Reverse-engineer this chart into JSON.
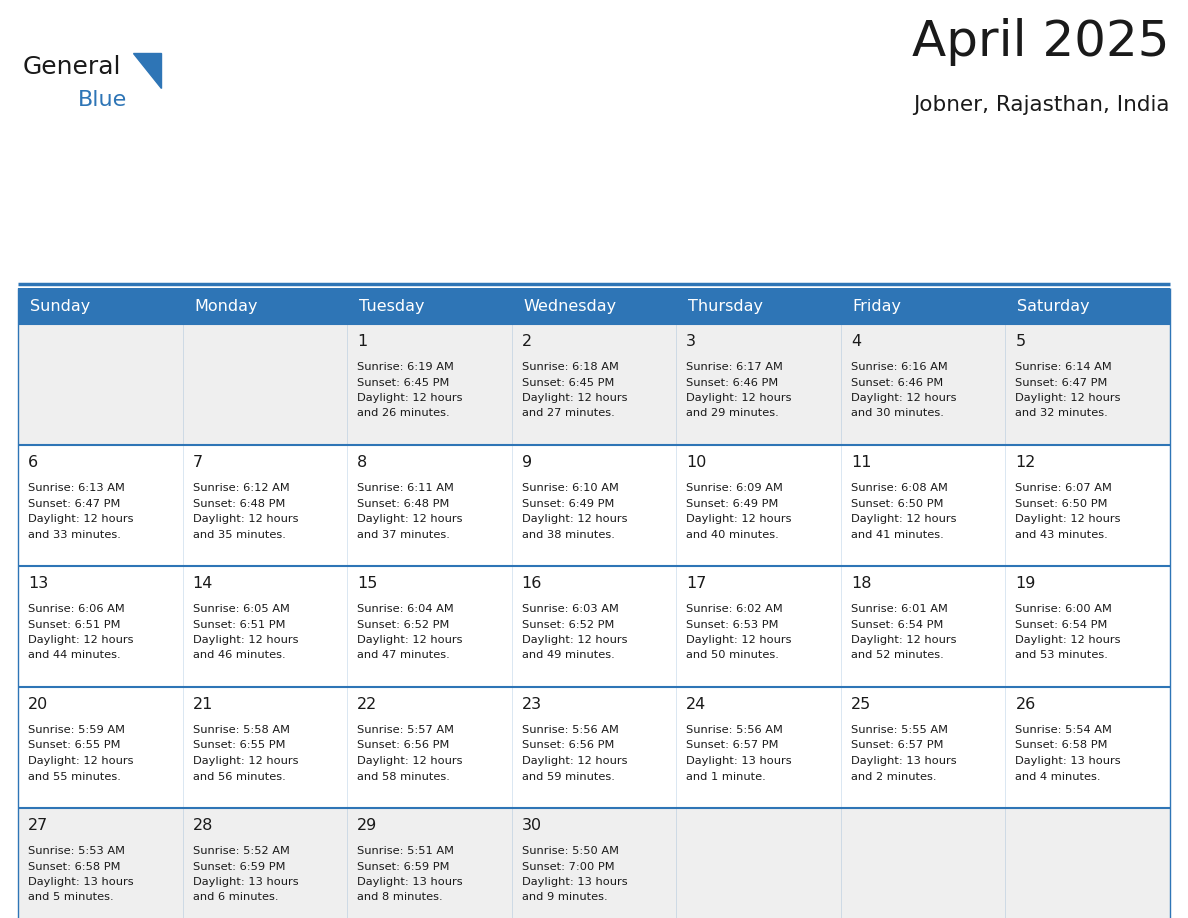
{
  "title": "April 2025",
  "subtitle": "Jobner, Rajasthan, India",
  "header_bg_color": "#2E75B6",
  "header_text_color": "#FFFFFF",
  "day_names": [
    "Sunday",
    "Monday",
    "Tuesday",
    "Wednesday",
    "Thursday",
    "Friday",
    "Saturday"
  ],
  "cell_bg_white": "#FFFFFF",
  "cell_bg_gray": "#EFEFEF",
  "grid_line_color": "#2E75B6",
  "day_num_color": "#1A1A1A",
  "detail_text_color": "#1A1A1A",
  "title_color": "#1A1A1A",
  "subtitle_color": "#1A1A1A",
  "logo_general_color": "#1A1A1A",
  "logo_blue_color": "#2E75B6",
  "weeks": [
    [
      {
        "day": "",
        "sunrise": "",
        "sunset": "",
        "daylight": ""
      },
      {
        "day": "",
        "sunrise": "",
        "sunset": "",
        "daylight": ""
      },
      {
        "day": "1",
        "sunrise": "6:19 AM",
        "sunset": "6:45 PM",
        "daylight": "12 hours and 26 minutes."
      },
      {
        "day": "2",
        "sunrise": "6:18 AM",
        "sunset": "6:45 PM",
        "daylight": "12 hours and 27 minutes."
      },
      {
        "day": "3",
        "sunrise": "6:17 AM",
        "sunset": "6:46 PM",
        "daylight": "12 hours and 29 minutes."
      },
      {
        "day": "4",
        "sunrise": "6:16 AM",
        "sunset": "6:46 PM",
        "daylight": "12 hours and 30 minutes."
      },
      {
        "day": "5",
        "sunrise": "6:14 AM",
        "sunset": "6:47 PM",
        "daylight": "12 hours and 32 minutes."
      }
    ],
    [
      {
        "day": "6",
        "sunrise": "6:13 AM",
        "sunset": "6:47 PM",
        "daylight": "12 hours and 33 minutes."
      },
      {
        "day": "7",
        "sunrise": "6:12 AM",
        "sunset": "6:48 PM",
        "daylight": "12 hours and 35 minutes."
      },
      {
        "day": "8",
        "sunrise": "6:11 AM",
        "sunset": "6:48 PM",
        "daylight": "12 hours and 37 minutes."
      },
      {
        "day": "9",
        "sunrise": "6:10 AM",
        "sunset": "6:49 PM",
        "daylight": "12 hours and 38 minutes."
      },
      {
        "day": "10",
        "sunrise": "6:09 AM",
        "sunset": "6:49 PM",
        "daylight": "12 hours and 40 minutes."
      },
      {
        "day": "11",
        "sunrise": "6:08 AM",
        "sunset": "6:50 PM",
        "daylight": "12 hours and 41 minutes."
      },
      {
        "day": "12",
        "sunrise": "6:07 AM",
        "sunset": "6:50 PM",
        "daylight": "12 hours and 43 minutes."
      }
    ],
    [
      {
        "day": "13",
        "sunrise": "6:06 AM",
        "sunset": "6:51 PM",
        "daylight": "12 hours and 44 minutes."
      },
      {
        "day": "14",
        "sunrise": "6:05 AM",
        "sunset": "6:51 PM",
        "daylight": "12 hours and 46 minutes."
      },
      {
        "day": "15",
        "sunrise": "6:04 AM",
        "sunset": "6:52 PM",
        "daylight": "12 hours and 47 minutes."
      },
      {
        "day": "16",
        "sunrise": "6:03 AM",
        "sunset": "6:52 PM",
        "daylight": "12 hours and 49 minutes."
      },
      {
        "day": "17",
        "sunrise": "6:02 AM",
        "sunset": "6:53 PM",
        "daylight": "12 hours and 50 minutes."
      },
      {
        "day": "18",
        "sunrise": "6:01 AM",
        "sunset": "6:54 PM",
        "daylight": "12 hours and 52 minutes."
      },
      {
        "day": "19",
        "sunrise": "6:00 AM",
        "sunset": "6:54 PM",
        "daylight": "12 hours and 53 minutes."
      }
    ],
    [
      {
        "day": "20",
        "sunrise": "5:59 AM",
        "sunset": "6:55 PM",
        "daylight": "12 hours and 55 minutes."
      },
      {
        "day": "21",
        "sunrise": "5:58 AM",
        "sunset": "6:55 PM",
        "daylight": "12 hours and 56 minutes."
      },
      {
        "day": "22",
        "sunrise": "5:57 AM",
        "sunset": "6:56 PM",
        "daylight": "12 hours and 58 minutes."
      },
      {
        "day": "23",
        "sunrise": "5:56 AM",
        "sunset": "6:56 PM",
        "daylight": "12 hours and 59 minutes."
      },
      {
        "day": "24",
        "sunrise": "5:56 AM",
        "sunset": "6:57 PM",
        "daylight": "13 hours and 1 minute."
      },
      {
        "day": "25",
        "sunrise": "5:55 AM",
        "sunset": "6:57 PM",
        "daylight": "13 hours and 2 minutes."
      },
      {
        "day": "26",
        "sunrise": "5:54 AM",
        "sunset": "6:58 PM",
        "daylight": "13 hours and 4 minutes."
      }
    ],
    [
      {
        "day": "27",
        "sunrise": "5:53 AM",
        "sunset": "6:58 PM",
        "daylight": "13 hours and 5 minutes."
      },
      {
        "day": "28",
        "sunrise": "5:52 AM",
        "sunset": "6:59 PM",
        "daylight": "13 hours and 6 minutes."
      },
      {
        "day": "29",
        "sunrise": "5:51 AM",
        "sunset": "6:59 PM",
        "daylight": "13 hours and 8 minutes."
      },
      {
        "day": "30",
        "sunrise": "5:50 AM",
        "sunset": "7:00 PM",
        "daylight": "13 hours and 9 minutes."
      },
      {
        "day": "",
        "sunrise": "",
        "sunset": "",
        "daylight": ""
      },
      {
        "day": "",
        "sunrise": "",
        "sunset": "",
        "daylight": ""
      },
      {
        "day": "",
        "sunrise": "",
        "sunset": "",
        "daylight": ""
      }
    ]
  ]
}
